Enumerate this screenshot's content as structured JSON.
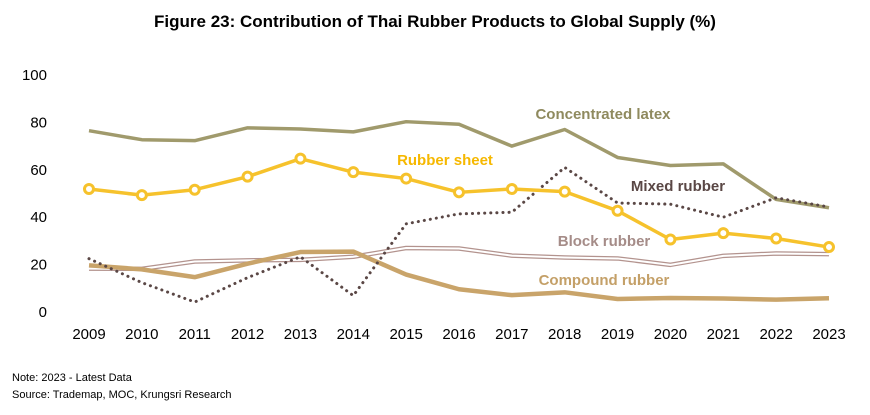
{
  "page": {
    "title": "Figure 23: Contribution of Thai Rubber Products to Global Supply (%)",
    "note": "Note: 2023 - Latest Data",
    "source": "Source: Trademap, MOC, Krungsri Research"
  },
  "chart_data": {
    "type": "line",
    "title": "Figure 23: Contribution of Thai Rubber Products to Global Supply (%)",
    "xlabel": "",
    "ylabel": "",
    "x": [
      2009,
      2010,
      2011,
      2012,
      2013,
      2014,
      2015,
      2016,
      2017,
      2018,
      2019,
      2020,
      2021,
      2022,
      2023
    ],
    "ylim": [
      0,
      100
    ],
    "yticks": [
      0,
      20,
      40,
      60,
      80,
      100
    ],
    "grid": false,
    "legend": "inline labels",
    "series": [
      {
        "name": "Concentrated latex",
        "color": "#a09a6c",
        "style": "solid",
        "values": [
          76.5,
          72.7,
          72.3,
          77.7,
          77.2,
          76.0,
          80.3,
          79.2,
          70.0,
          77.0,
          65.2,
          61.8,
          62.5,
          47.5,
          44.0
        ]
      },
      {
        "name": "Rubber sheet",
        "color": "#f6c22c",
        "style": "solid-markers",
        "values": [
          51.9,
          49.3,
          51.6,
          57.1,
          64.7,
          59.0,
          56.3,
          50.5,
          51.9,
          50.8,
          42.7,
          30.6,
          33.3,
          31.0,
          27.4
        ]
      },
      {
        "name": "Mixed rubber",
        "color": "#5a4745",
        "style": "dotted",
        "values": [
          22.5,
          12.4,
          4.2,
          14.5,
          23.3,
          6.9,
          37.2,
          41.4,
          42.1,
          61.0,
          46.0,
          45.5,
          40.0,
          48.2,
          44.3
        ]
      },
      {
        "name": "Block rubber",
        "color": "#b3938e",
        "style": "double",
        "values": [
          18.3,
          18.2,
          21.3,
          21.8,
          22.0,
          23.3,
          27.0,
          26.8,
          23.8,
          23.0,
          22.6,
          19.9,
          23.7,
          24.7,
          24.4
        ]
      },
      {
        "name": "Compound rubber",
        "color": "#c9a46a",
        "style": "solid",
        "values": [
          19.7,
          18.0,
          14.7,
          20.4,
          25.3,
          25.5,
          15.8,
          9.6,
          7.1,
          8.3,
          5.5,
          5.9,
          5.7,
          5.2,
          5.8
        ]
      }
    ]
  }
}
